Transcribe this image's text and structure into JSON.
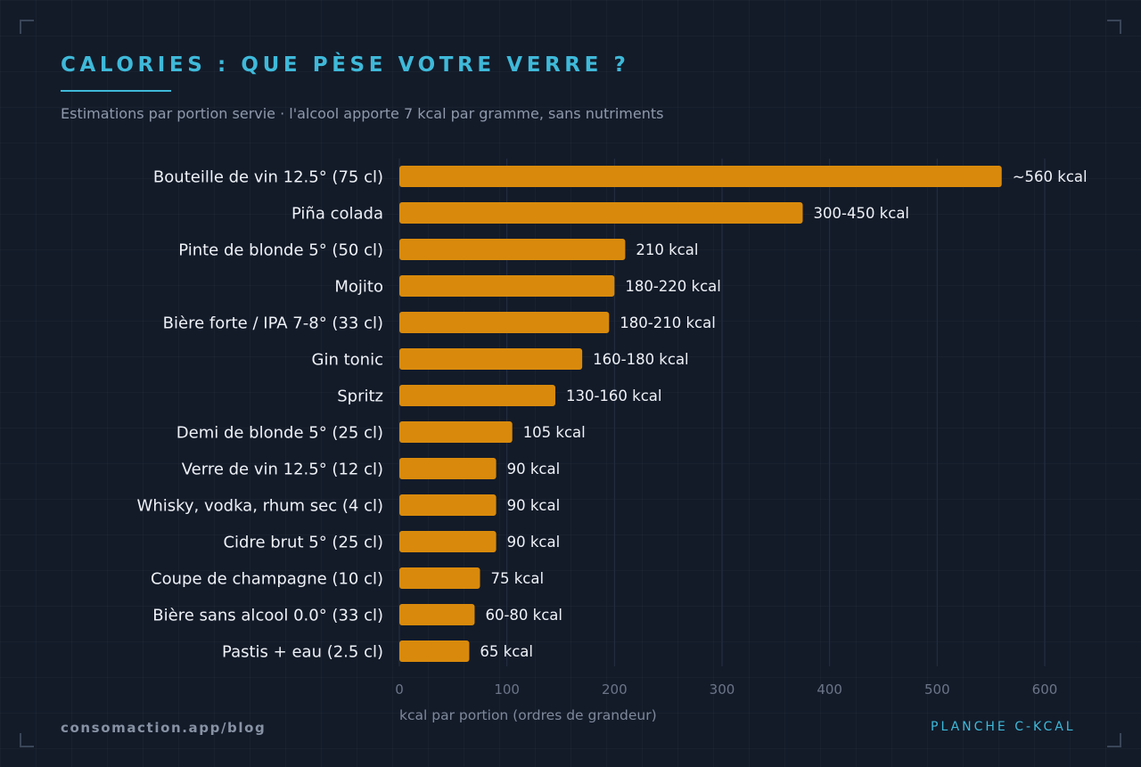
{
  "header": {
    "title": "CALORIES : QUE PÈSE VOTRE VERRE ?",
    "subtitle": "Estimations par portion servie · l'alcool apporte 7 kcal par gramme, sans nutriments"
  },
  "footer": {
    "source": "consomaction.app/blog",
    "plate": "PLANCHE C-KCAL"
  },
  "chart_data": {
    "type": "bar",
    "orientation": "horizontal",
    "title": "CALORIES : QUE PÈSE VOTRE VERRE ?",
    "xlabel": "kcal par portion (ordres de grandeur)",
    "ylabel": "",
    "xlim": [
      0,
      600
    ],
    "xticks": [
      0,
      100,
      200,
      300,
      400,
      500,
      600
    ],
    "grid": true,
    "bar_color": "#d98a0c",
    "categories": [
      "Bouteille de vin 12.5° (75 cl)",
      "Piña colada",
      "Pinte de blonde 5° (50 cl)",
      "Mojito",
      "Bière forte / IPA 7-8° (33 cl)",
      "Gin tonic",
      "Spritz",
      "Demi de blonde 5° (25 cl)",
      "Verre de vin 12.5° (12 cl)",
      "Whisky, vodka, rhum sec (4 cl)",
      "Cidre brut 5° (25 cl)",
      "Coupe de champagne (10 cl)",
      "Bière sans alcool 0.0° (33 cl)",
      "Pastis + eau (2.5 cl)"
    ],
    "values": [
      560,
      375,
      210,
      200,
      195,
      170,
      145,
      105,
      90,
      90,
      90,
      75,
      70,
      65
    ],
    "labels": [
      "~560 kcal",
      "300-450 kcal",
      "210 kcal",
      "180-220 kcal",
      "180-210 kcal",
      "160-180 kcal",
      "130-160 kcal",
      "105 kcal",
      "90 kcal",
      "90 kcal",
      "90 kcal",
      "75 kcal",
      "60-80 kcal",
      "65 kcal"
    ]
  }
}
